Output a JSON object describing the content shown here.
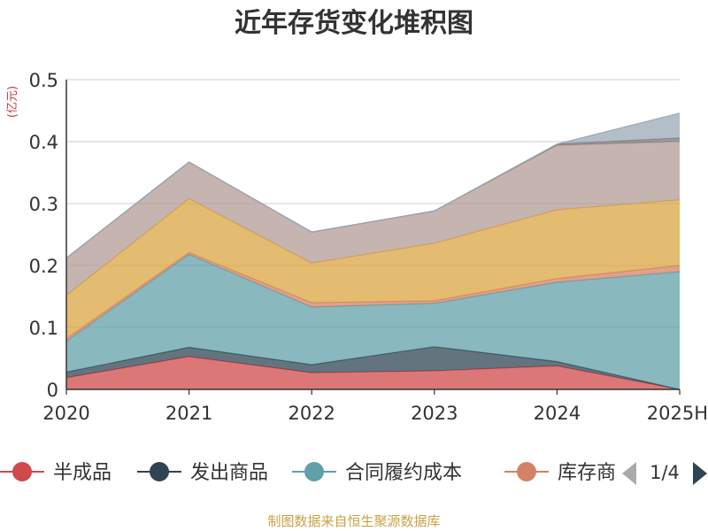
{
  "chart_data": {
    "type": "area",
    "stacked": true,
    "title": "近年存货变化堆积图",
    "y_unit": "(亿元)",
    "categories": [
      "2020",
      "2021",
      "2022",
      "2023",
      "2024",
      "2025H"
    ],
    "ylim": [
      0,
      0.5
    ],
    "yticks": [
      0,
      0.1,
      0.2,
      0.3,
      0.4,
      0.5
    ],
    "ytick_labels": [
      "0",
      "0.1",
      "0.2",
      "0.3",
      "0.4",
      "0.5"
    ],
    "grid": true,
    "series": [
      {
        "name": "半成品",
        "color": "#d0494b",
        "values": [
          0.019,
          0.053,
          0.027,
          0.03,
          0.038,
          0.0
        ]
      },
      {
        "name": "发出商品",
        "color": "#2f4554",
        "values": [
          0.009,
          0.015,
          0.013,
          0.039,
          0.007,
          0.0
        ]
      },
      {
        "name": "合同履约成本",
        "color": "#61a0a8",
        "values": [
          0.05,
          0.15,
          0.093,
          0.07,
          0.128,
          0.19
        ]
      },
      {
        "name": "库存商品",
        "color": "#d48265",
        "values": [
          0.004,
          0.003,
          0.007,
          0.004,
          0.006,
          0.01
        ]
      },
      {
        "name": "",
        "color": "#d9a441",
        "values": [
          0.07,
          0.087,
          0.064,
          0.093,
          0.111,
          0.106
        ]
      },
      {
        "name": "",
        "color": "#b39b95",
        "values": [
          0.06,
          0.059,
          0.05,
          0.052,
          0.104,
          0.094
        ]
      },
      {
        "name": "",
        "color": "#7a7a7a",
        "values": [
          0.0,
          0.0,
          0.0,
          0.0,
          0.002,
          0.006
        ]
      },
      {
        "name": "",
        "color": "#9aa8b6",
        "values": [
          0.0,
          0.0,
          0.0,
          0.0,
          0.0,
          0.04
        ]
      }
    ],
    "legend": {
      "position": "bottom",
      "items": [
        "半成品",
        "发出商品",
        "合同履约成本",
        "库存商"
      ],
      "page": "1/4"
    },
    "source": "制图数据来自恒生聚源数据库"
  }
}
